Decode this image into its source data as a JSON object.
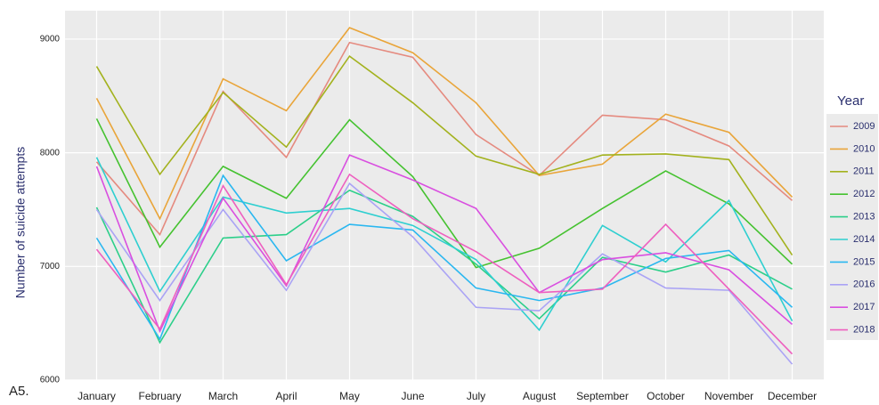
{
  "chart_data": {
    "type": "line",
    "y_label": "Number of suicide attempts",
    "annotation": "A5.",
    "legend_title": "Year",
    "legend": "right",
    "grid": true,
    "categories": [
      "January",
      "February",
      "March",
      "April",
      "May",
      "June",
      "July",
      "August",
      "September",
      "October",
      "November",
      "December"
    ],
    "ylim": [
      6000,
      9250
    ],
    "yticks": [
      6000,
      7000,
      8000,
      9000
    ],
    "series": [
      {
        "name": "2009",
        "color": "#e58a7f",
        "values": [
          7920,
          7280,
          8540,
          7960,
          8970,
          8840,
          8160,
          7800,
          8330,
          8290,
          8060,
          7580
        ]
      },
      {
        "name": "2010",
        "color": "#e9a53a",
        "values": [
          8480,
          7420,
          8650,
          8370,
          9100,
          8880,
          8440,
          7800,
          7900,
          8340,
          8180,
          7610
        ]
      },
      {
        "name": "2011",
        "color": "#a3b21e",
        "values": [
          8760,
          7810,
          8530,
          8050,
          8850,
          8440,
          7970,
          7810,
          7980,
          7990,
          7940,
          7100
        ]
      },
      {
        "name": "2012",
        "color": "#45c230",
        "values": [
          8300,
          7170,
          7880,
          7600,
          8290,
          7790,
          6990,
          7160,
          7510,
          7840,
          7550,
          7020
        ]
      },
      {
        "name": "2013",
        "color": "#2ccf8a",
        "values": [
          7520,
          6330,
          7250,
          7280,
          7670,
          7440,
          7020,
          6540,
          7080,
          6950,
          7100,
          6800
        ]
      },
      {
        "name": "2014",
        "color": "#2ecfd0",
        "values": [
          7960,
          6780,
          7610,
          7470,
          7510,
          7360,
          7060,
          6440,
          7360,
          7040,
          7580,
          6520
        ]
      },
      {
        "name": "2015",
        "color": "#2ab7f0",
        "values": [
          7250,
          6360,
          7800,
          7050,
          7370,
          7320,
          6810,
          6700,
          6810,
          7070,
          7140,
          6640
        ]
      },
      {
        "name": "2016",
        "color": "#aaa3f5",
        "values": [
          7500,
          6700,
          7500,
          6790,
          7730,
          7260,
          6640,
          6610,
          7110,
          6810,
          6790,
          6140
        ]
      },
      {
        "name": "2017",
        "color": "#d94fe0",
        "values": [
          7880,
          6430,
          7600,
          6830,
          7980,
          7760,
          7510,
          6770,
          7060,
          7120,
          6970,
          6490
        ]
      },
      {
        "name": "2018",
        "color": "#ee5fbf",
        "values": [
          7150,
          6450,
          7710,
          6840,
          7810,
          7420,
          7130,
          6770,
          6800,
          7370,
          6800,
          6230
        ]
      }
    ]
  }
}
